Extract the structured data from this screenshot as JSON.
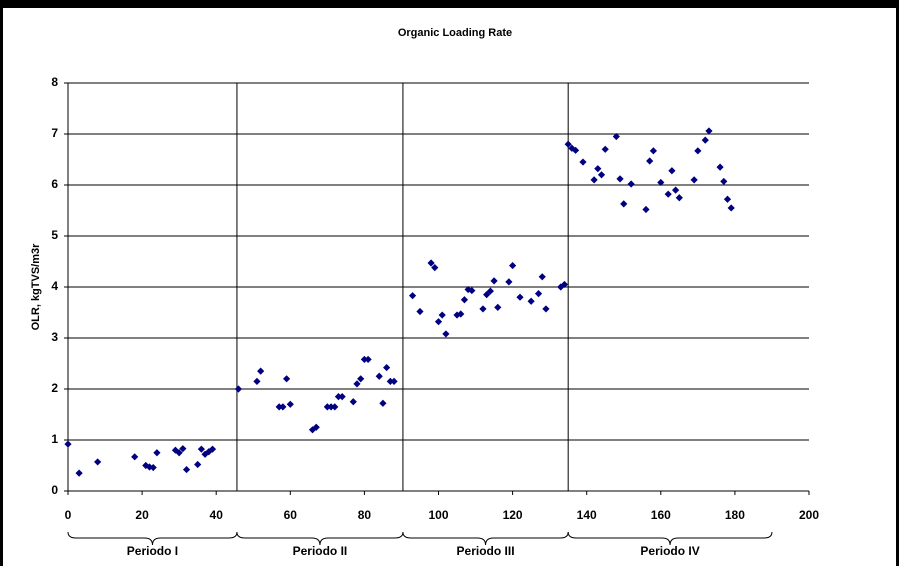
{
  "chart_data": {
    "type": "scatter",
    "title": "Organic Loading Rate",
    "y_label": "OLR, kgTVS/m3r",
    "color": "#000080",
    "x": [
      0,
      3,
      8,
      18,
      21,
      22,
      23,
      24,
      29,
      30,
      31,
      32,
      35,
      36,
      37,
      38,
      39,
      46,
      51,
      52,
      57,
      58,
      59,
      60,
      66,
      67,
      70,
      71,
      72,
      73,
      74,
      77,
      78,
      79,
      80,
      81,
      84,
      85,
      86,
      87,
      88,
      93,
      95,
      98,
      99,
      100,
      101,
      102,
      105,
      106,
      107,
      108,
      109,
      112,
      113,
      114,
      115,
      116,
      119,
      120,
      122,
      125,
      127,
      128,
      129,
      133,
      134,
      135,
      136,
      137,
      139,
      142,
      143,
      144,
      145,
      148,
      149,
      150,
      152,
      156,
      157,
      158,
      160,
      162,
      163,
      164,
      165,
      169,
      170,
      172,
      173,
      176,
      177,
      178,
      179
    ],
    "values": [
      0.92,
      0.35,
      0.57,
      0.67,
      0.5,
      0.47,
      0.46,
      0.75,
      0.8,
      0.75,
      0.83,
      0.42,
      0.52,
      0.82,
      0.72,
      0.77,
      0.82,
      2.0,
      2.15,
      2.35,
      1.65,
      1.65,
      2.2,
      1.7,
      1.2,
      1.25,
      1.65,
      1.65,
      1.65,
      1.85,
      1.85,
      1.75,
      2.1,
      2.2,
      2.58,
      2.58,
      2.25,
      1.72,
      2.42,
      2.15,
      2.15,
      3.83,
      3.52,
      4.47,
      4.38,
      3.32,
      3.45,
      3.08,
      3.45,
      3.47,
      3.75,
      3.95,
      3.93,
      3.57,
      3.85,
      3.92,
      4.12,
      3.6,
      4.1,
      4.42,
      3.8,
      3.72,
      3.87,
      4.2,
      3.57,
      4.0,
      4.05,
      6.8,
      6.72,
      6.68,
      6.45,
      6.1,
      6.32,
      6.2,
      6.7,
      6.95,
      6.12,
      5.63,
      6.02,
      5.52,
      6.47,
      6.67,
      6.05,
      5.82,
      6.28,
      5.9,
      5.75,
      6.1,
      6.67,
      6.88,
      7.06,
      6.35,
      6.07,
      5.72,
      5.55
    ],
    "xlim": [
      0,
      200
    ],
    "xticks": [
      0,
      20,
      40,
      60,
      80,
      100,
      120,
      140,
      160,
      180,
      200
    ],
    "ylim": [
      0,
      8
    ],
    "yticks": [
      0,
      1,
      2,
      3,
      4,
      5,
      6,
      7,
      8
    ],
    "grid": true,
    "periods": [
      {
        "label": "Periodo I",
        "start": 0,
        "end": 45.6
      },
      {
        "label": "Periodo  II",
        "start": 45.6,
        "end": 90.4
      },
      {
        "label": "Periodo III",
        "start": 90.4,
        "end": 135
      },
      {
        "label": "Periodo IV",
        "start": 135,
        "end": 190
      }
    ]
  }
}
